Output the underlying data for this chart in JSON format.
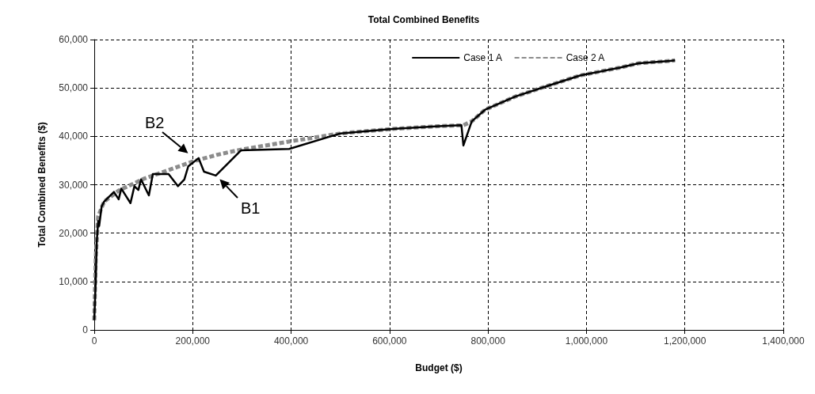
{
  "chart_data": {
    "type": "line",
    "title": "Total Combined Benefits",
    "xlabel": "Budget ($)",
    "ylabel": "Total Combined Benefits ($)",
    "xlim": [
      0,
      1400000
    ],
    "xticks": [
      {
        "value": 0,
        "label": "0"
      },
      {
        "value": 200000,
        "label": "200,000"
      },
      {
        "value": 400000,
        "label": "400,000"
      },
      {
        "value": 600000,
        "label": "600,000"
      },
      {
        "value": 800000,
        "label": "800,000"
      },
      {
        "value": 1000000,
        "label": "1,000,000"
      },
      {
        "value": 1200000,
        "label": "1,200,000"
      },
      {
        "value": 1400000,
        "label": "1,400,000"
      }
    ],
    "ylim": [
      0,
      60000
    ],
    "yticks": [
      {
        "value": 0,
        "label": "0"
      },
      {
        "value": 10000,
        "label": "10,000"
      },
      {
        "value": 20000,
        "label": "20,000"
      },
      {
        "value": 30000,
        "label": "30,000"
      },
      {
        "value": 40000,
        "label": "40,000"
      },
      {
        "value": 50000,
        "label": "50,000"
      },
      {
        "value": 60000,
        "label": "60,000"
      }
    ],
    "grid": true,
    "legend": "top right",
    "marker": "none",
    "series": [
      {
        "name": "Case 1 A",
        "color": "#000000",
        "line_style": "solid",
        "x": [
          0,
          3000,
          5000,
          8000,
          10000,
          15000,
          20000,
          40000,
          49600,
          55000,
          73600,
          81600,
          89600,
          95000,
          111000,
          119000,
          151000,
          170000,
          183000,
          191000,
          212000,
          223000,
          247000,
          298000,
          396000,
          500000,
          600000,
          700000,
          746000,
          750000,
          767000,
          794000,
          855000,
          914000,
          988000,
          1068000,
          1106000,
          1170000,
          1180000
        ],
        "values": [
          2000,
          10000,
          18000,
          22500,
          21500,
          25500,
          26500,
          28500,
          27000,
          29200,
          26200,
          29700,
          28900,
          31100,
          27800,
          32200,
          32200,
          29700,
          31100,
          33800,
          35500,
          32700,
          31900,
          37100,
          37400,
          40600,
          41500,
          42100,
          42300,
          38100,
          43100,
          45500,
          48200,
          50200,
          52600,
          54200,
          55100,
          55600,
          55700
        ]
      },
      {
        "name": "Case 2 A",
        "color": "#8c8c8c",
        "line_style": "dashed",
        "x": [
          0,
          3000,
          8000,
          20000,
          50000,
          100000,
          150000,
          200000,
          250000,
          300000,
          400000,
          500000,
          600000,
          700000,
          750000,
          767000,
          794000,
          855000,
          914000,
          988000,
          1068000,
          1106000,
          1170000,
          1180000
        ],
        "values": [
          2000,
          15000,
          23500,
          26500,
          28800,
          31200,
          33000,
          34800,
          36200,
          37300,
          39000,
          40600,
          41500,
          42100,
          42300,
          43100,
          45500,
          48200,
          50200,
          52600,
          54200,
          55100,
          55600,
          55700
        ]
      }
    ],
    "annotations": [
      "B2",
      "B1"
    ]
  }
}
